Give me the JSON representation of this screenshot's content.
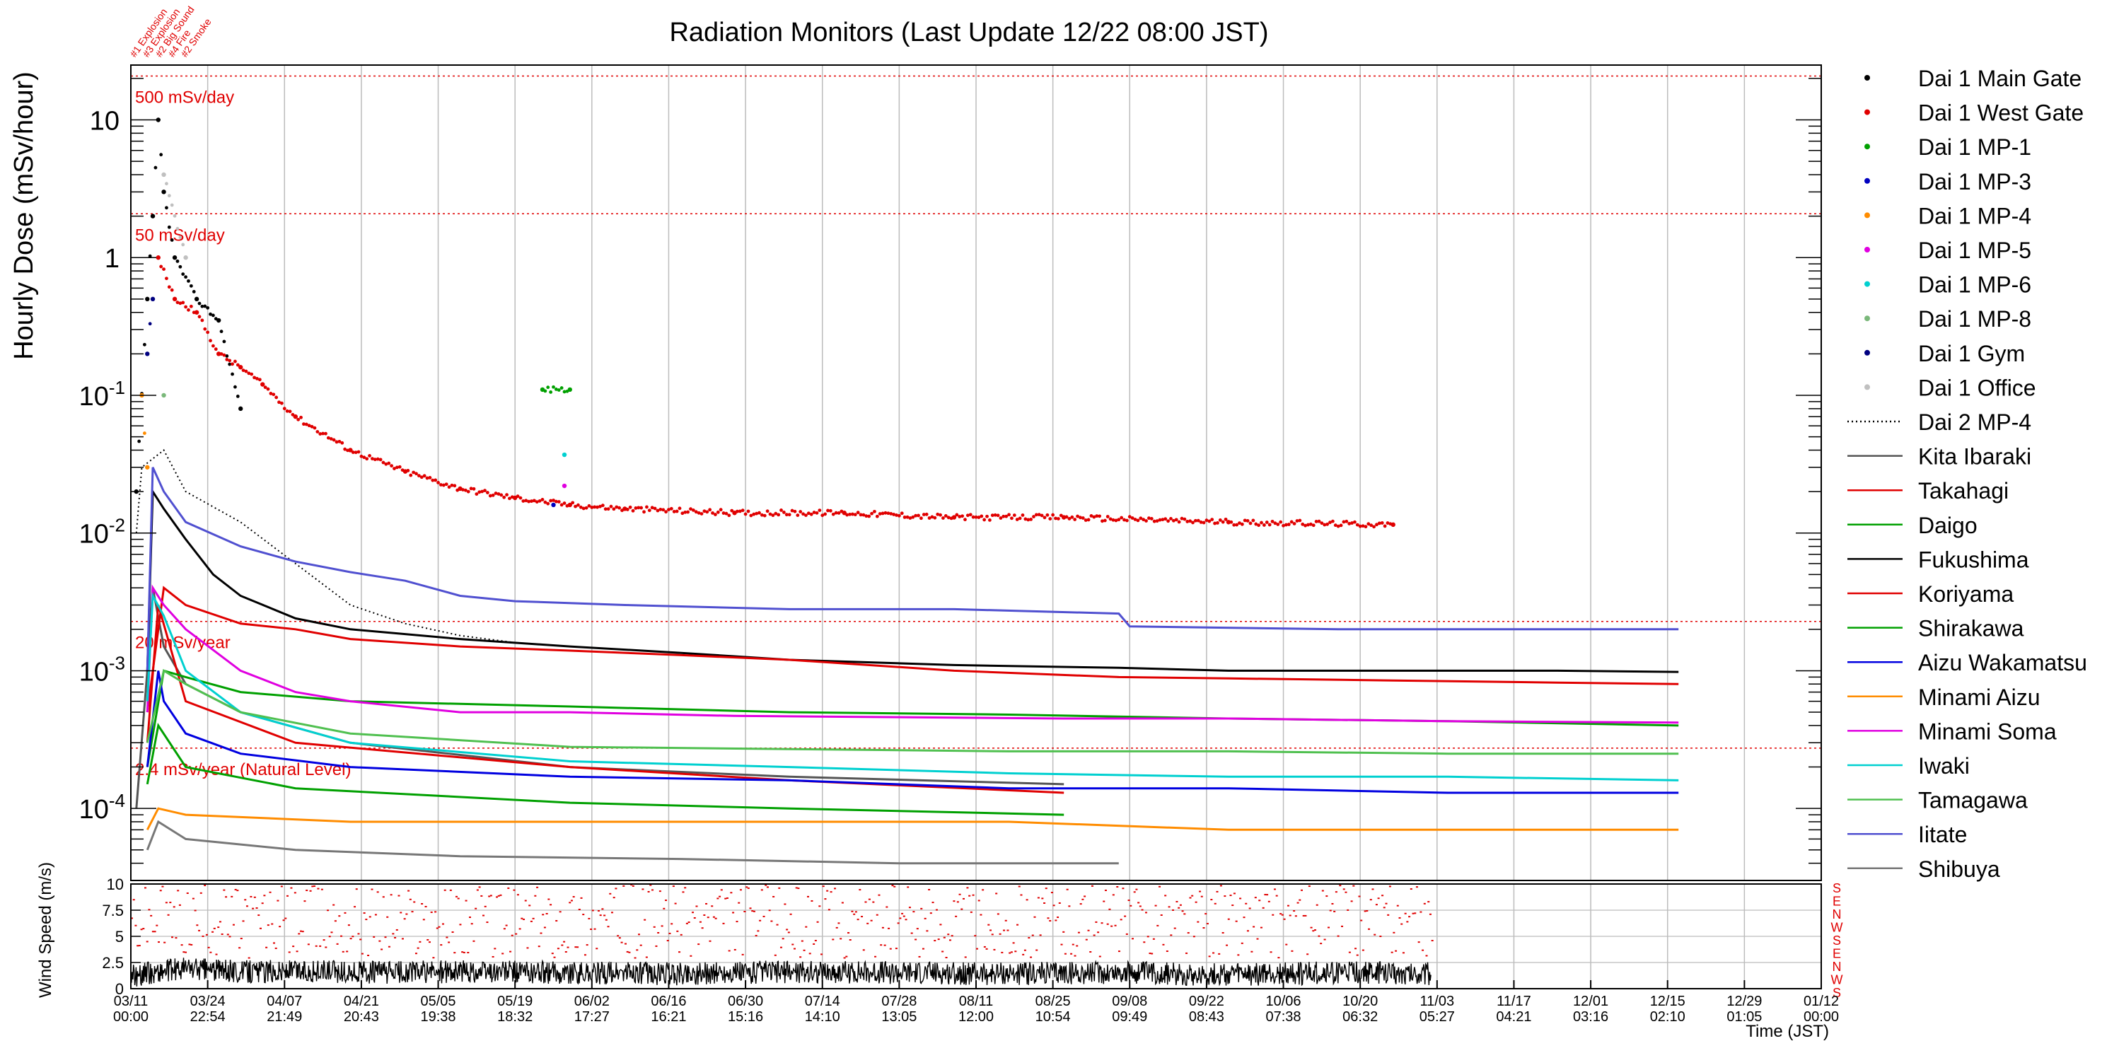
{
  "chart_data": {
    "type": "scatter",
    "title": "Radiation Monitors (Last Update 12/22 08:00 JST)",
    "ylabel": "Hourly Dose (mSv/hour)",
    "xlabel": "Time (JST)",
    "y_scale": "log",
    "ylim": [
      3e-05,
      25
    ],
    "y_ticks": [
      {
        "label": "10",
        "value": 10
      },
      {
        "label": "1",
        "value": 1
      },
      {
        "label": "10^-1",
        "base": "10",
        "exp": "-1",
        "value": 0.1
      },
      {
        "label": "10^-2",
        "base": "10",
        "exp": "-2",
        "value": 0.01
      },
      {
        "label": "10^-3",
        "base": "10",
        "exp": "-3",
        "value": 0.001
      },
      {
        "label": "10^-4",
        "base": "10",
        "exp": "-4",
        "value": 0.0001
      }
    ],
    "x_ticks": [
      {
        "day": 0,
        "date": "03/11",
        "time": "00:00"
      },
      {
        "day": 14,
        "date": "03/24",
        "time": "22:54"
      },
      {
        "day": 28,
        "date": "04/07",
        "time": "21:49"
      },
      {
        "day": 42,
        "date": "04/21",
        "time": "20:43"
      },
      {
        "day": 56,
        "date": "05/05",
        "time": "19:38"
      },
      {
        "day": 70,
        "date": "05/19",
        "time": "18:32"
      },
      {
        "day": 84,
        "date": "06/02",
        "time": "17:27"
      },
      {
        "day": 98,
        "date": "06/16",
        "time": "16:21"
      },
      {
        "day": 112,
        "date": "06/30",
        "time": "15:16"
      },
      {
        "day": 126,
        "date": "07/14",
        "time": "14:10"
      },
      {
        "day": 140,
        "date": "07/28",
        "time": "13:05"
      },
      {
        "day": 154,
        "date": "08/11",
        "time": "12:00"
      },
      {
        "day": 168,
        "date": "08/25",
        "time": "10:54"
      },
      {
        "day": 182,
        "date": "09/08",
        "time": "09:49"
      },
      {
        "day": 196,
        "date": "09/22",
        "time": "08:43"
      },
      {
        "day": 210,
        "date": "10/06",
        "time": "07:38"
      },
      {
        "day": 224,
        "date": "10/20",
        "time": "06:32"
      },
      {
        "day": 238,
        "date": "11/03",
        "time": "05:27"
      },
      {
        "day": 252,
        "date": "11/17",
        "time": "04:21"
      },
      {
        "day": 266,
        "date": "12/01",
        "time": "03:16"
      },
      {
        "day": 280,
        "date": "12/15",
        "time": "02:10"
      },
      {
        "day": 294,
        "date": "12/29",
        "time": "01:05"
      },
      {
        "day": 308,
        "date": "01/12",
        "time": "00:00"
      }
    ],
    "reference_lines": [
      {
        "label": "500 mSv/day",
        "value": 20.8
      },
      {
        "label": "50 mSv/day",
        "value": 2.08
      },
      {
        "label": "20 mSv/year",
        "value": 0.00228
      },
      {
        "label": "2.4 mSv/year (Natural Level)",
        "value": 0.000274
      }
    ],
    "event_annotations": [
      "#1 Explosion",
      "#3 Explosion",
      "#2 Big Sound",
      "#4 Fire",
      "#2 Smoke"
    ],
    "legend_position": "right",
    "series": [
      {
        "name": "Dai 1 Main Gate",
        "color": "#000000",
        "style": "dots",
        "points": [
          [
            1,
            0.02
          ],
          [
            3,
            0.5
          ],
          [
            4,
            2
          ],
          [
            5,
            10
          ],
          [
            6,
            3
          ],
          [
            8,
            1
          ],
          [
            12,
            0.5
          ],
          [
            16,
            0.35
          ],
          [
            20,
            0.08
          ]
        ]
      },
      {
        "name": "Dai 1 West Gate",
        "color": "#e00000",
        "style": "dots",
        "points": [
          [
            5,
            1
          ],
          [
            8,
            0.5
          ],
          [
            12,
            0.4
          ],
          [
            16,
            0.2
          ],
          [
            20,
            0.16
          ],
          [
            24,
            0.12
          ],
          [
            30,
            0.07
          ],
          [
            40,
            0.04
          ],
          [
            50,
            0.028
          ],
          [
            60,
            0.021
          ],
          [
            70,
            0.018
          ],
          [
            80,
            0.016
          ],
          [
            90,
            0.015
          ],
          [
            110,
            0.014
          ],
          [
            130,
            0.014
          ],
          [
            150,
            0.013
          ],
          [
            170,
            0.013
          ],
          [
            200,
            0.012
          ],
          [
            230,
            0.0115
          ]
        ]
      },
      {
        "name": "Dai 1 MP-1",
        "color": "#00a000",
        "style": "dots",
        "points": [
          [
            75,
            0.11
          ],
          [
            80,
            0.11
          ]
        ]
      },
      {
        "name": "Dai 1 MP-3",
        "color": "#0000c0",
        "style": "dots",
        "points": [
          [
            77,
            0.016
          ]
        ]
      },
      {
        "name": "Dai 1 MP-4",
        "color": "#ff8c00",
        "style": "dots",
        "points": [
          [
            2,
            0.1
          ],
          [
            3,
            0.03
          ]
        ]
      },
      {
        "name": "Dai 1 MP-5",
        "color": "#e000e0",
        "style": "dots",
        "points": [
          [
            79,
            0.022
          ]
        ]
      },
      {
        "name": "Dai 1 MP-6",
        "color": "#00d0d0",
        "style": "dots",
        "points": [
          [
            79,
            0.037
          ]
        ]
      },
      {
        "name": "Dai 1 MP-8",
        "color": "#7ab87a",
        "style": "dots",
        "points": [
          [
            6,
            0.1
          ]
        ]
      },
      {
        "name": "Dai 1 Gym",
        "color": "#000080",
        "style": "dots",
        "points": [
          [
            3,
            0.2
          ],
          [
            4,
            0.5
          ]
        ]
      },
      {
        "name": "Dai 1 Office",
        "color": "#c0c0c0",
        "style": "dots",
        "points": [
          [
            6,
            4
          ],
          [
            10,
            1
          ]
        ]
      },
      {
        "name": "Dai 2 MP-4",
        "color": "#000000",
        "style": "dotted-line",
        "points": [
          [
            1,
            0.01
          ],
          [
            2,
            0.03
          ],
          [
            6,
            0.04
          ],
          [
            10,
            0.02
          ],
          [
            20,
            0.012
          ],
          [
            30,
            0.006
          ],
          [
            40,
            0.003
          ],
          [
            50,
            0.0022
          ],
          [
            60,
            0.0018
          ],
          [
            70,
            0.0016
          ],
          [
            80,
            0.0015
          ]
        ]
      },
      {
        "name": "Kita Ibaraki",
        "color": "#555555",
        "style": "line",
        "points": [
          [
            1,
            0.0001
          ],
          [
            3,
            0.001
          ],
          [
            4,
            0.004
          ],
          [
            6,
            0.0015
          ],
          [
            10,
            0.0008
          ],
          [
            20,
            0.0005
          ],
          [
            40,
            0.0003
          ],
          [
            80,
            0.0002
          ],
          [
            120,
            0.00017
          ],
          [
            170,
            0.00015
          ]
        ]
      },
      {
        "name": "Takahagi",
        "color": "#e00000",
        "style": "line",
        "points": [
          [
            3,
            0.0003
          ],
          [
            5,
            0.003
          ],
          [
            10,
            0.0006
          ],
          [
            30,
            0.0003
          ],
          [
            80,
            0.0002
          ],
          [
            120,
            0.00016
          ],
          [
            170,
            0.00013
          ]
        ]
      },
      {
        "name": "Daigo",
        "color": "#00a000",
        "style": "line",
        "points": [
          [
            3,
            0.00015
          ],
          [
            5,
            0.0004
          ],
          [
            10,
            0.0002
          ],
          [
            30,
            0.00014
          ],
          [
            80,
            0.00011
          ],
          [
            120,
            0.0001
          ],
          [
            170,
            9e-05
          ]
        ]
      },
      {
        "name": "Fukushima",
        "color": "#000000",
        "style": "line",
        "points": [
          [
            3,
            0.001
          ],
          [
            4,
            0.02
          ],
          [
            6,
            0.015
          ],
          [
            10,
            0.009
          ],
          [
            15,
            0.005
          ],
          [
            20,
            0.0035
          ],
          [
            30,
            0.0024
          ],
          [
            40,
            0.002
          ],
          [
            60,
            0.0017
          ],
          [
            80,
            0.0015
          ],
          [
            100,
            0.00135
          ],
          [
            120,
            0.0012
          ],
          [
            150,
            0.0011
          ],
          [
            180,
            0.00105
          ],
          [
            200,
            0.001
          ],
          [
            230,
            0.001
          ],
          [
            260,
            0.001
          ],
          [
            282,
            0.00098
          ]
        ]
      },
      {
        "name": "Koriyama",
        "color": "#e00000",
        "style": "line",
        "points": [
          [
            3,
            0.0005
          ],
          [
            6,
            0.004
          ],
          [
            10,
            0.003
          ],
          [
            20,
            0.0022
          ],
          [
            30,
            0.002
          ],
          [
            40,
            0.0017
          ],
          [
            60,
            0.0015
          ],
          [
            80,
            0.0014
          ],
          [
            100,
            0.0013
          ],
          [
            120,
            0.0012
          ],
          [
            150,
            0.001
          ],
          [
            180,
            0.0009
          ],
          [
            200,
            0.00088
          ],
          [
            230,
            0.00085
          ],
          [
            260,
            0.00082
          ],
          [
            282,
            0.0008
          ]
        ]
      },
      {
        "name": "Shirakawa",
        "color": "#00a000",
        "style": "line",
        "points": [
          [
            3,
            0.0002
          ],
          [
            6,
            0.001
          ],
          [
            10,
            0.0009
          ],
          [
            20,
            0.0007
          ],
          [
            40,
            0.0006
          ],
          [
            80,
            0.00055
          ],
          [
            120,
            0.0005
          ],
          [
            160,
            0.00048
          ],
          [
            200,
            0.00045
          ],
          [
            240,
            0.00043
          ],
          [
            282,
            0.0004
          ]
        ]
      },
      {
        "name": "Aizu Wakamatsu",
        "color": "#0000e0",
        "style": "line",
        "points": [
          [
            3,
            0.0002
          ],
          [
            5,
            0.001
          ],
          [
            6,
            0.0006
          ],
          [
            10,
            0.00035
          ],
          [
            20,
            0.00025
          ],
          [
            40,
            0.0002
          ],
          [
            80,
            0.00017
          ],
          [
            120,
            0.00016
          ],
          [
            160,
            0.00014
          ],
          [
            200,
            0.00014
          ],
          [
            240,
            0.00013
          ],
          [
            282,
            0.00013
          ]
        ]
      },
      {
        "name": "Minami Aizu",
        "color": "#ff8c00",
        "style": "line",
        "points": [
          [
            3,
            7e-05
          ],
          [
            5,
            0.0001
          ],
          [
            10,
            9e-05
          ],
          [
            40,
            8e-05
          ],
          [
            80,
            8e-05
          ],
          [
            120,
            8e-05
          ],
          [
            160,
            8e-05
          ],
          [
            200,
            7e-05
          ],
          [
            240,
            7e-05
          ],
          [
            282,
            7e-05
          ]
        ]
      },
      {
        "name": "Minami Soma",
        "color": "#e000e0",
        "style": "line",
        "points": [
          [
            3,
            0.0005
          ],
          [
            4,
            0.004
          ],
          [
            6,
            0.003
          ],
          [
            10,
            0.002
          ],
          [
            20,
            0.001
          ],
          [
            30,
            0.0007
          ],
          [
            40,
            0.0006
          ],
          [
            60,
            0.0005
          ],
          [
            80,
            0.0005
          ],
          [
            110,
            0.00047
          ],
          [
            140,
            0.00046
          ],
          [
            170,
            0.00045
          ],
          [
            200,
            0.00045
          ],
          [
            240,
            0.00043
          ],
          [
            282,
            0.00042
          ]
        ]
      },
      {
        "name": "Iwaki",
        "color": "#00d0d0",
        "style": "line",
        "points": [
          [
            3,
            0.0006
          ],
          [
            4,
            0.0035
          ],
          [
            6,
            0.0025
          ],
          [
            10,
            0.001
          ],
          [
            20,
            0.0005
          ],
          [
            40,
            0.0003
          ],
          [
            80,
            0.00022
          ],
          [
            120,
            0.0002
          ],
          [
            160,
            0.00018
          ],
          [
            200,
            0.00017
          ],
          [
            240,
            0.00017
          ],
          [
            282,
            0.00016
          ]
        ]
      },
      {
        "name": "Tamagawa",
        "color": "#50c050",
        "style": "line",
        "points": [
          [
            3,
            0.0003
          ],
          [
            6,
            0.001
          ],
          [
            10,
            0.0008
          ],
          [
            20,
            0.0005
          ],
          [
            40,
            0.00035
          ],
          [
            80,
            0.00028
          ],
          [
            120,
            0.00027
          ],
          [
            160,
            0.00026
          ],
          [
            200,
            0.00026
          ],
          [
            240,
            0.00025
          ],
          [
            282,
            0.00025
          ]
        ]
      },
      {
        "name": "Iitate",
        "color": "#5050d0",
        "style": "line",
        "points": [
          [
            3,
            0.001
          ],
          [
            4,
            0.03
          ],
          [
            6,
            0.02
          ],
          [
            10,
            0.012
          ],
          [
            20,
            0.008
          ],
          [
            30,
            0.0062
          ],
          [
            40,
            0.0052
          ],
          [
            50,
            0.0045
          ],
          [
            60,
            0.0035
          ],
          [
            70,
            0.0032
          ],
          [
            90,
            0.003
          ],
          [
            120,
            0.0028
          ],
          [
            150,
            0.0028
          ],
          [
            180,
            0.0026
          ],
          [
            182,
            0.0021
          ],
          [
            220,
            0.002
          ],
          [
            260,
            0.002
          ],
          [
            282,
            0.002
          ]
        ]
      },
      {
        "name": "Shibuya",
        "color": "#777777",
        "style": "line",
        "points": [
          [
            3,
            5e-05
          ],
          [
            5,
            8e-05
          ],
          [
            10,
            6e-05
          ],
          [
            30,
            5e-05
          ],
          [
            60,
            4.5e-05
          ],
          [
            100,
            4.3e-05
          ],
          [
            140,
            4e-05
          ],
          [
            180,
            4e-05
          ]
        ]
      }
    ],
    "wind_panel": {
      "ylabel": "Wind Speed (m/s)",
      "y_ticks": [
        0,
        2.5,
        5,
        7.5,
        10
      ],
      "ylim": [
        0,
        10
      ],
      "direction_labels": [
        "S",
        "E",
        "N",
        "W",
        "S",
        "E",
        "N",
        "W",
        "S"
      ],
      "speed_profile": [
        [
          0,
          1
        ],
        [
          10,
          1.8
        ],
        [
          20,
          1.4
        ],
        [
          30,
          1.5
        ],
        [
          40,
          1.3
        ],
        [
          60,
          1.4
        ],
        [
          80,
          1.3
        ],
        [
          100,
          1.2
        ],
        [
          120,
          1.4
        ],
        [
          140,
          1.3
        ],
        [
          160,
          1.2
        ],
        [
          180,
          1.3
        ],
        [
          200,
          1.1
        ],
        [
          220,
          1.3
        ],
        [
          237,
          1.2
        ]
      ]
    }
  }
}
